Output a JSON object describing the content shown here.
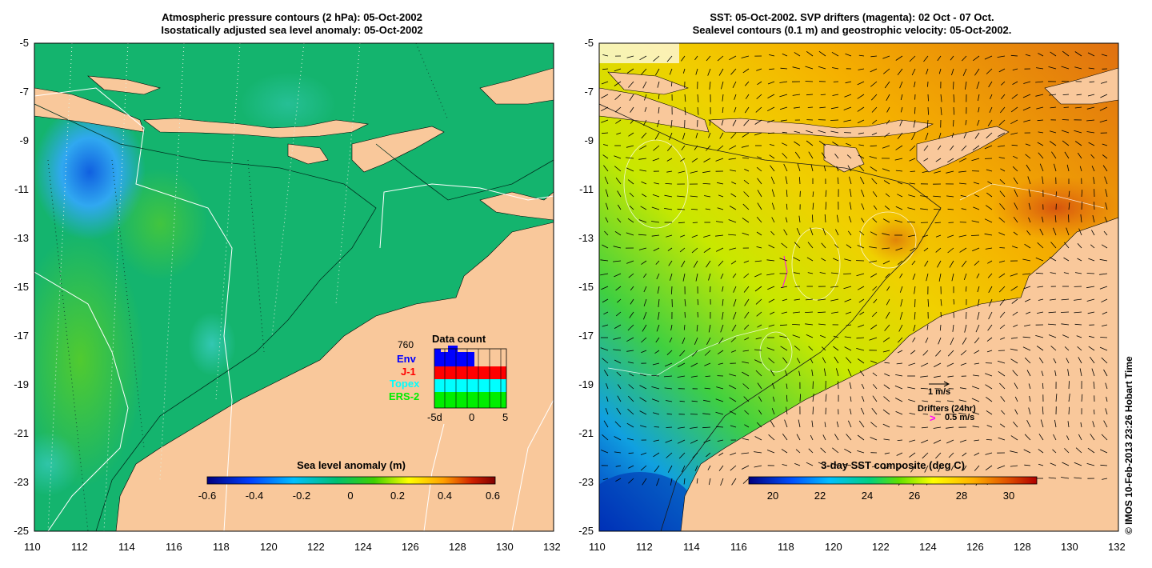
{
  "left_panel": {
    "title_line1": "Atmospheric pressure contours (2 hPa): 05-Oct-2002",
    "title_line2": "Isostatically adjusted sea level anomaly: 05-Oct-2002",
    "colorbar_label": "Sea level anomaly (m)",
    "colorbar_ticks": [
      "-0.6",
      "-0.4",
      "-0.2",
      "0",
      "0.2",
      "0.4",
      "0.6"
    ],
    "colorbar_colors": [
      "#00007f",
      "#0040ff",
      "#00bfff",
      "#00c070",
      "#40d000",
      "#ffff00",
      "#ffa000",
      "#c00000",
      "#7f0000"
    ],
    "data_count": {
      "title": "Data count",
      "max_label": "760",
      "legend": [
        {
          "name": "Env",
          "color": "#0000ff"
        },
        {
          "name": "J-1",
          "color": "#ff0000"
        },
        {
          "name": "Topex",
          "color": "#00ffff"
        },
        {
          "name": "ERS-2",
          "color": "#00ee00"
        }
      ],
      "x_ticks": [
        "-5d",
        "0",
        "5"
      ]
    }
  },
  "right_panel": {
    "title_line1": "SST: 05-Oct-2002. SVP drifters (magenta): 02 Oct - 07 Oct.",
    "title_line2": "Sealevel contours (0.1 m) and geostrophic velocity: 05-Oct-2002.",
    "colorbar_label": "3-day SST composite (deg C)",
    "colorbar_ticks": [
      "20",
      "22",
      "24",
      "26",
      "28",
      "30"
    ],
    "colorbar_colors": [
      "#00007f",
      "#0050ff",
      "#00c0ff",
      "#00d080",
      "#60e000",
      "#ffff00",
      "#ffb000",
      "#e05000",
      "#b00000"
    ],
    "velocity_legend": "1 m/s",
    "drifters_legend": "Drifters (24hr)",
    "drifters_speed": "0.5 m/s",
    "drifters_marker": ">"
  },
  "x_ticks": [
    "110",
    "112",
    "114",
    "116",
    "118",
    "120",
    "122",
    "124",
    "126",
    "128",
    "130",
    "132"
  ],
  "y_ticks": [
    "-5",
    "-7",
    "-9",
    "-11",
    "-13",
    "-15",
    "-17",
    "-19",
    "-21",
    "-23",
    "-25"
  ],
  "credit": "© IMOS 10-Feb-2013 23:26 Hobart Time",
  "colors": {
    "land": "#f9c89b",
    "ocean_left": "#14b46e",
    "ocean_right": "#f5b800"
  }
}
